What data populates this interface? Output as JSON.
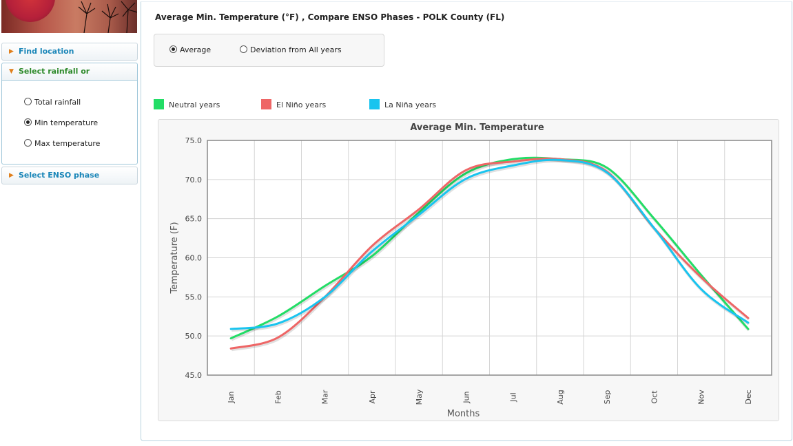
{
  "sidebar": {
    "items": [
      {
        "label": "Find location"
      },
      {
        "label": "Select rainfall or temperature"
      },
      {
        "label": "Select ENSO phase"
      }
    ],
    "options": [
      {
        "label": "Total rainfall",
        "selected": false
      },
      {
        "label": "Min temperature",
        "selected": true
      },
      {
        "label": "Max temperature",
        "selected": false
      }
    ]
  },
  "main": {
    "title": "Average Min. Temperature (°F) , Compare ENSO Phases - POLK County (FL)",
    "modes": [
      {
        "label": "Average",
        "selected": true
      },
      {
        "label": "Deviation from All years",
        "selected": false
      }
    ],
    "legend": [
      {
        "label": "Neutral years",
        "color": "#22dd66"
      },
      {
        "label": "El Niño years",
        "color": "#ee6666"
      },
      {
        "label": "La Niña years",
        "color": "#19c4ef"
      }
    ]
  },
  "chart_data": {
    "type": "line",
    "title": "Average Min. Temperature",
    "xlabel": "Months",
    "ylabel": "Temperature (F)",
    "ylim": [
      45,
      75
    ],
    "yticks": [
      "45.0",
      "50.0",
      "55.0",
      "60.0",
      "65.0",
      "70.0",
      "75.0"
    ],
    "categories": [
      "Jan",
      "Feb",
      "Mar",
      "Apr",
      "May",
      "Jun",
      "Jul",
      "Aug",
      "Sep",
      "Oct",
      "Nov",
      "Dec"
    ],
    "grid": true,
    "series": [
      {
        "name": "Neutral years",
        "color": "#22dd66",
        "values": [
          49.7,
          52.5,
          56.4,
          60.2,
          65.8,
          70.8,
          72.6,
          72.6,
          71.5,
          65.0,
          57.8,
          50.9
        ]
      },
      {
        "name": "El Niño years",
        "color": "#ee6666",
        "values": [
          48.4,
          49.8,
          55.0,
          61.5,
          66.2,
          71.2,
          72.3,
          72.6,
          71.0,
          63.8,
          57.5,
          52.3
        ]
      },
      {
        "name": "La Niña years",
        "color": "#19c4ef",
        "values": [
          50.9,
          51.6,
          55.0,
          60.8,
          65.5,
          70.1,
          71.8,
          72.5,
          70.9,
          63.8,
          56.0,
          51.7
        ]
      }
    ]
  }
}
